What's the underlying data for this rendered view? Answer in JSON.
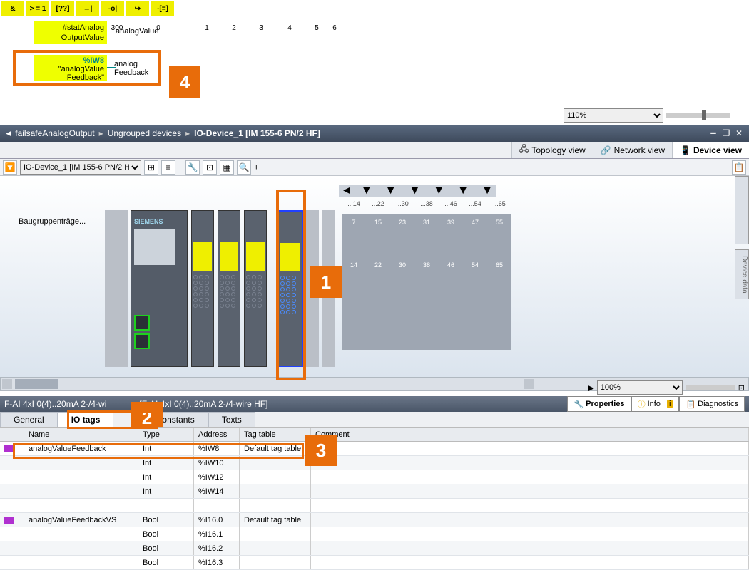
{
  "yellowToolbar": [
    "&",
    "> = 1",
    "[??]",
    "→|",
    "-o|",
    "↪",
    "-[=]"
  ],
  "ladder": {
    "out1_line1": "#statAnalog",
    "out1_line2": "OutputValue",
    "out1_label": "analogValue",
    "out2_addr": "%IW8",
    "out2_name1": "\"analogValue",
    "out2_name2": "Feedback\"",
    "out2_lbl1": "analog",
    "out2_lbl2": "Feedback"
  },
  "callouts": {
    "c1": "1",
    "c2": "2",
    "c3": "3",
    "c4": "4"
  },
  "zoom1": "110%",
  "breadcrumb": {
    "icon": "◄",
    "p1": "failsafeAnalogOutput",
    "p2": "Ungrouped devices",
    "p3": "IO-Device_1 [IM 155-6 PN/2 HF]"
  },
  "viewTabs": {
    "topology": "Topology view",
    "network": "Network view",
    "device": "Device view"
  },
  "deviceCombo": "IO-Device_1 [IM 155-6 PN/2 HF]",
  "rack": {
    "label": "Baugruppenträge...",
    "slots_main": [
      "300",
      "0",
      "1",
      "2",
      "3",
      "4",
      "5",
      "6"
    ],
    "slots_small_top": [
      "...14",
      "...22",
      "...30",
      "...38",
      "...46",
      "...54",
      "...65"
    ],
    "slots_small_mid": [
      "7",
      "15",
      "23",
      "31",
      "39",
      "47",
      "55"
    ],
    "slots_small_bot": [
      "14",
      "22",
      "30",
      "38",
      "46",
      "54",
      "65"
    ],
    "siemens": "SIEMENS"
  },
  "zoom2": "100%",
  "moduleTitle": "F-AI 4xI 0(4)..20mA 2-/4-wi",
  "moduleTitle2": "[F-AI 4xI 0(4)..20mA 2-/4-wire HF]",
  "inspectorTabs": {
    "props": "Properties",
    "info": "Info",
    "diag": "Diagnostics"
  },
  "lowerTabs": {
    "general": "General",
    "iotags": "IO tags",
    "constants": "constants",
    "texts": "Texts"
  },
  "ioTable": {
    "headers": {
      "name": "Name",
      "type": "Type",
      "addr": "Address",
      "tt": "Tag table",
      "com": "Comment"
    },
    "rows": [
      {
        "ic": true,
        "name": "analogValueFeedback",
        "type": "Int",
        "addr": "%IW8",
        "tt": "Default tag table"
      },
      {
        "ic": false,
        "name": "",
        "type": "Int",
        "addr": "%IW10",
        "tt": ""
      },
      {
        "ic": false,
        "name": "",
        "type": "Int",
        "addr": "%IW12",
        "tt": ""
      },
      {
        "ic": false,
        "name": "",
        "type": "Int",
        "addr": "%IW14",
        "tt": ""
      },
      {
        "blank": true
      },
      {
        "ic": true,
        "name": "analogValueFeedbackVS",
        "type": "Bool",
        "addr": "%I16.0",
        "tt": "Default tag table"
      },
      {
        "ic": false,
        "name": "",
        "type": "Bool",
        "addr": "%I16.1",
        "tt": ""
      },
      {
        "ic": false,
        "name": "",
        "type": "Bool",
        "addr": "%I16.2",
        "tt": ""
      },
      {
        "ic": false,
        "name": "",
        "type": "Bool",
        "addr": "%I16.3",
        "tt": ""
      }
    ]
  },
  "sidetab": "Device data"
}
